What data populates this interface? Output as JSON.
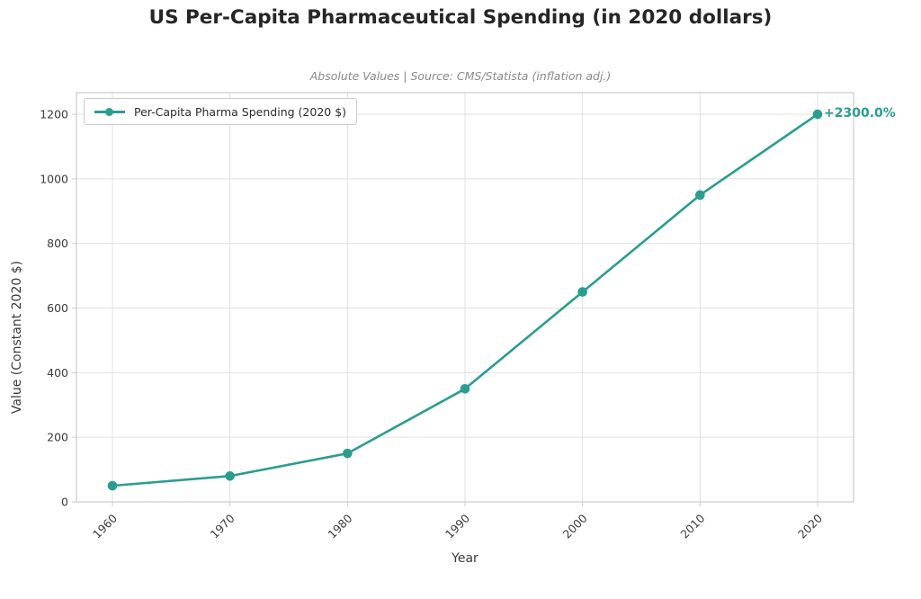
{
  "title": "US Per-Capita Pharmaceutical Spending (in 2020 dollars)",
  "subtitle": "Absolute Values | Source: CMS/Statista (inflation adj.)",
  "colors": {
    "accent_teal": "#2a9d8f",
    "grid": "#e0e0e0",
    "spine": "#cccccc",
    "text_dark": "#262626",
    "text_muted": "#8a8a8a"
  },
  "chart_data": {
    "type": "line",
    "title": "US Per-Capita Pharmaceutical Spending (in 2020 dollars)",
    "subtitle": "Absolute Values | Source: CMS/Statista (inflation adj.)",
    "x": [
      1960,
      1970,
      1980,
      1990,
      2000,
      2010,
      2020
    ],
    "x_tick_labels": [
      "1960",
      "1970",
      "1980",
      "1990",
      "2000",
      "2010",
      "2020"
    ],
    "series": [
      {
        "name": "Per-Capita Pharma Spending (2020 $)",
        "values": [
          50,
          80,
          150,
          350,
          650,
          950,
          1200
        ],
        "color": "#2a9d8f",
        "marker": "circle"
      }
    ],
    "xlabel": "Year",
    "ylabel": "Value (Constant 2020 $)",
    "ylim": [
      0,
      1267
    ],
    "yticks": [
      0,
      200,
      400,
      600,
      800,
      1000,
      1200
    ],
    "grid": true,
    "legend_position": "upper-left",
    "annotation": {
      "text": "+2300.0%",
      "x": 2020,
      "y": 1200,
      "color": "#2a9d8f"
    }
  }
}
